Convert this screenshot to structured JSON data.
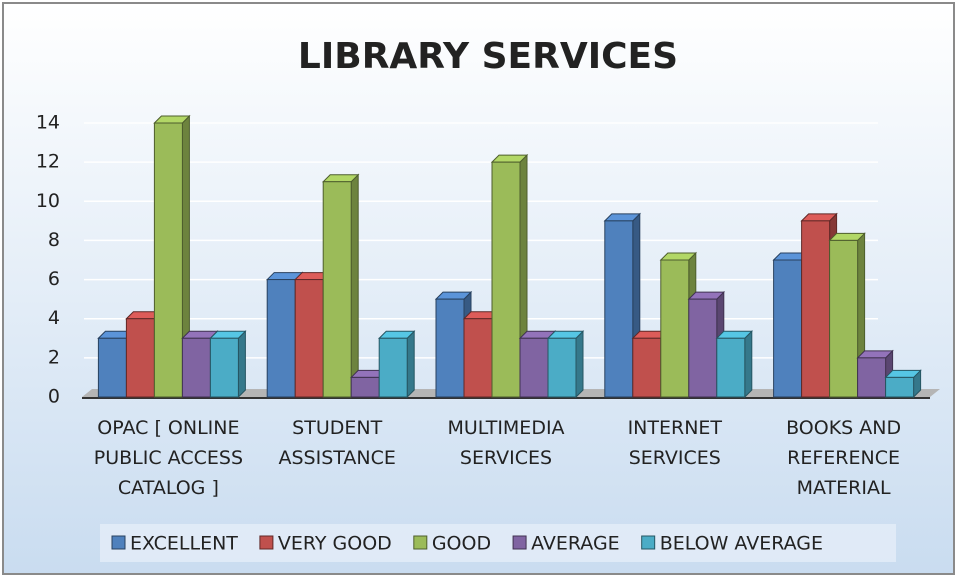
{
  "chart_data": {
    "type": "bar",
    "title": "LIBRARY SERVICES",
    "categories": [
      "OPAC [ ONLINE PUBLIC ACCESS CATALOG ]",
      "STUDENT ASSISTANCE",
      "MULTIMEDIA SERVICES",
      "INTERNET SERVICES",
      "BOOKS AND REFERENCE MATERIAL"
    ],
    "series": [
      {
        "name": "EXCELLENT",
        "color": "#4f81bd",
        "values": [
          3,
          6,
          5,
          9,
          7
        ]
      },
      {
        "name": "VERY GOOD",
        "color": "#c0504d",
        "values": [
          4,
          6,
          4,
          3,
          9
        ]
      },
      {
        "name": "GOOD",
        "color": "#9bbb59",
        "values": [
          14,
          11,
          12,
          7,
          8
        ]
      },
      {
        "name": "AVERAGE",
        "color": "#8064a2",
        "values": [
          3,
          1,
          3,
          5,
          2
        ]
      },
      {
        "name": "BELOW AVERAGE",
        "color": "#4bacc6",
        "values": [
          3,
          3,
          3,
          3,
          1
        ]
      }
    ],
    "ylim": [
      0,
      14
    ],
    "yticks": [
      0,
      2,
      4,
      6,
      8,
      10,
      12,
      14
    ],
    "grid": true,
    "legend": "bottom"
  }
}
